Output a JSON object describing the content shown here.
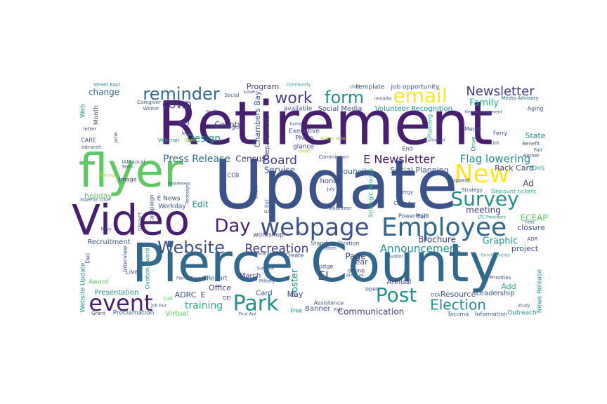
{
  "palette": {
    "dark_purple": "#481f70",
    "violet": "#443a83",
    "indigo": "#3b528b",
    "steel_blue": "#31688e",
    "blue": "#2c728e",
    "teal": "#21918c",
    "sea_green": "#28ae80",
    "green": "#5ec962",
    "lime": "#addc30",
    "yellow": "#fde725",
    "gold": "#d0e11c"
  },
  "words": [
    {
      "text": "Retirement",
      "c": "dark_purple"
    },
    {
      "text": "Update",
      "c": "indigo"
    },
    {
      "text": "Pierce County",
      "c": "steel_blue"
    },
    {
      "text": "flyer",
      "c": "green"
    },
    {
      "text": "Video",
      "c": "dark_purple"
    },
    {
      "text": "Employee",
      "c": "steel_blue"
    },
    {
      "text": "webpage",
      "c": "indigo"
    },
    {
      "text": "New",
      "c": "yellow"
    },
    {
      "text": "Survey",
      "c": "teal"
    },
    {
      "text": "email",
      "c": "yellow"
    },
    {
      "text": "form",
      "c": "teal"
    },
    {
      "text": "work",
      "c": "violet"
    },
    {
      "text": "reminder",
      "c": "steel_blue"
    },
    {
      "text": "Newsletter",
      "c": "violet"
    },
    {
      "text": "Family",
      "c": "sea_green"
    },
    {
      "text": "Day",
      "c": "dark_purple"
    },
    {
      "text": "Website",
      "c": "indigo"
    },
    {
      "text": "Park",
      "c": "teal"
    },
    {
      "text": "event",
      "c": "dark_purple"
    },
    {
      "text": "Post",
      "c": "teal"
    },
    {
      "text": "Election",
      "c": "teal"
    },
    {
      "text": "Recreation",
      "c": "violet"
    },
    {
      "text": "Announcement",
      "c": "teal"
    },
    {
      "text": "Board",
      "c": "violet"
    },
    {
      "text": "E Newsletter",
      "c": "dark_purple"
    },
    {
      "text": "Flag lowering",
      "c": "teal"
    },
    {
      "text": "Press Release",
      "c": "steel_blue"
    },
    {
      "text": "Census",
      "c": "violet"
    },
    {
      "text": "Design",
      "c": "teal"
    },
    {
      "text": "COVID",
      "c": "violet"
    },
    {
      "text": "change",
      "c": "steel_blue"
    },
    {
      "text": "Service",
      "c": "indigo"
    },
    {
      "text": "Council",
      "c": "steel_blue"
    },
    {
      "text": "Social Planning",
      "c": "indigo"
    },
    {
      "text": "Rack Card",
      "c": "violet"
    },
    {
      "text": "POHS",
      "c": "teal"
    },
    {
      "text": "Ad",
      "c": "violet"
    },
    {
      "text": "meeting",
      "c": "violet"
    },
    {
      "text": "ECEAP",
      "c": "green"
    },
    {
      "text": "closure",
      "c": "indigo"
    },
    {
      "text": "Graphic",
      "c": "teal"
    },
    {
      "text": "project",
      "c": "indigo"
    },
    {
      "text": "Brochure",
      "c": "violet"
    },
    {
      "text": "Page",
      "c": "violet"
    },
    {
      "text": "EI",
      "c": "indigo"
    },
    {
      "text": "Poster",
      "c": "teal"
    },
    {
      "text": "Year",
      "c": "indigo"
    },
    {
      "text": "Annual",
      "c": "violet"
    },
    {
      "text": "Resource",
      "c": "indigo"
    },
    {
      "text": "Leadership",
      "c": "indigo"
    },
    {
      "text": "News Release",
      "c": "teal"
    },
    {
      "text": "Add",
      "c": "sea_green"
    },
    {
      "text": "Communication",
      "c": "violet"
    },
    {
      "text": "Banner",
      "c": "indigo"
    },
    {
      "text": "training",
      "c": "sea_green"
    },
    {
      "text": "ADRC",
      "c": "indigo"
    },
    {
      "text": "E",
      "c": "violet"
    },
    {
      "text": "Office",
      "c": "violet"
    },
    {
      "text": "Card",
      "c": "indigo"
    },
    {
      "text": "May",
      "c": "violet"
    },
    {
      "text": "March",
      "c": "violet"
    },
    {
      "text": "Report",
      "c": "steel_blue"
    },
    {
      "text": "Presentation",
      "c": "teal"
    },
    {
      "text": "Proclamation",
      "c": "steel_blue"
    },
    {
      "text": "Virtual",
      "c": "green"
    },
    {
      "text": "Award",
      "c": "green"
    },
    {
      "text": "Live",
      "c": "violet"
    },
    {
      "text": "Ovation Award",
      "c": "teal"
    },
    {
      "text": "Interview",
      "c": "indigo"
    },
    {
      "text": "Recruitment",
      "c": "indigo"
    },
    {
      "text": "Dec",
      "c": "indigo"
    },
    {
      "text": "holiday",
      "c": "green"
    },
    {
      "text": "Edit",
      "c": "teal"
    },
    {
      "text": "Workday",
      "c": "indigo"
    },
    {
      "text": "E News",
      "c": "indigo"
    },
    {
      "text": "campaign",
      "c": "indigo"
    },
    {
      "text": "Image",
      "c": "violet"
    },
    {
      "text": "IAM Local",
      "c": "indigo"
    },
    {
      "text": "CARE",
      "c": "indigo"
    },
    {
      "text": "intranet",
      "c": "indigo"
    },
    {
      "text": "Veteran",
      "c": "teal"
    },
    {
      "text": "April",
      "c": "lime"
    },
    {
      "text": "logo",
      "c": "indigo"
    },
    {
      "text": "letter",
      "c": "indigo"
    },
    {
      "text": "Winter",
      "c": "indigo"
    },
    {
      "text": "Caregiver",
      "c": "indigo"
    },
    {
      "text": "Web",
      "c": "teal"
    },
    {
      "text": "Month",
      "c": "indigo"
    },
    {
      "text": "Street East",
      "c": "teal"
    },
    {
      "text": "Program",
      "c": "violet"
    },
    {
      "text": "County",
      "c": "violet"
    },
    {
      "text": "message",
      "c": "indigo"
    },
    {
      "text": "blog",
      "c": "indigo"
    },
    {
      "text": "Social",
      "c": "indigo"
    },
    {
      "text": "Love",
      "c": "indigo"
    },
    {
      "text": "Chambers Bay",
      "c": "indigo"
    },
    {
      "text": "Department",
      "c": "violet"
    },
    {
      "text": "available",
      "c": "indigo"
    },
    {
      "text": "Social Media",
      "c": "indigo"
    },
    {
      "text": "Volunteer Recognition",
      "c": "teal"
    },
    {
      "text": "template",
      "c": "indigo"
    },
    {
      "text": "job opportunity",
      "c": "indigo"
    },
    {
      "text": "Media Advisory",
      "c": "steel_blue"
    },
    {
      "text": "Aging",
      "c": "indigo"
    },
    {
      "text": "Executive",
      "c": "indigo"
    },
    {
      "text": "Photo",
      "c": "violet"
    },
    {
      "text": "glance",
      "c": "violet"
    },
    {
      "text": "Extra Hire",
      "c": "lime"
    },
    {
      "text": "End",
      "c": "indigo"
    },
    {
      "text": "Media",
      "c": "indigo"
    },
    {
      "text": "Ferry",
      "c": "indigo"
    },
    {
      "text": "State",
      "c": "teal"
    },
    {
      "text": "Benefit",
      "c": "indigo"
    },
    {
      "text": "Fair",
      "c": "indigo"
    },
    {
      "text": "Drive",
      "c": "teal"
    },
    {
      "text": "Planning",
      "c": "sea_green"
    },
    {
      "text": "Commission",
      "c": "indigo"
    },
    {
      "text": "Request",
      "c": "indigo"
    },
    {
      "text": "CCB",
      "c": "violet"
    },
    {
      "text": "Ride",
      "c": "indigo"
    },
    {
      "text": "E list",
      "c": "indigo"
    },
    {
      "text": "honor",
      "c": "violet"
    },
    {
      "text": "Strategic Alliance",
      "c": "sea_green"
    },
    {
      "text": "Strategy",
      "c": "indigo"
    },
    {
      "text": "Discount tickets",
      "c": "sea_green"
    },
    {
      "text": "Energy",
      "c": "indigo"
    },
    {
      "text": "Calendar",
      "c": "indigo"
    },
    {
      "text": "Fall",
      "c": "indigo"
    },
    {
      "text": "PowerPoint",
      "c": "indigo"
    },
    {
      "text": "workshop",
      "c": "violet"
    },
    {
      "text": "Standing Ovation",
      "c": "indigo"
    },
    {
      "text": "Volunteer",
      "c": "indigo"
    },
    {
      "text": "online",
      "c": "violet"
    },
    {
      "text": "Judge",
      "c": "indigo"
    },
    {
      "text": "Create",
      "c": "indigo"
    },
    {
      "text": "Assistance",
      "c": "indigo"
    },
    {
      "text": "Free",
      "c": "teal"
    },
    {
      "text": "Fab",
      "c": "indigo"
    },
    {
      "text": "open",
      "c": "indigo"
    },
    {
      "text": "Tacoma",
      "c": "indigo"
    },
    {
      "text": "Information",
      "c": "indigo"
    },
    {
      "text": "Outreach",
      "c": "teal"
    },
    {
      "text": "Priorities",
      "c": "indigo"
    },
    {
      "text": "ADR",
      "c": "indigo"
    },
    {
      "text": "winner",
      "c": "indigo"
    },
    {
      "text": "Grant",
      "c": "indigo"
    },
    {
      "text": "DEI",
      "c": "indigo"
    },
    {
      "text": "Call",
      "c": "green"
    },
    {
      "text": "Spring",
      "c": "lime"
    },
    {
      "text": "study",
      "c": "indigo"
    },
    {
      "text": "Job Fair",
      "c": "indigo"
    },
    {
      "text": "First Aid",
      "c": "indigo"
    },
    {
      "text": "Behavioral Health",
      "c": "indigo"
    },
    {
      "text": "Pierce Trips",
      "c": "indigo"
    },
    {
      "text": "Superior Court",
      "c": "indigo"
    },
    {
      "text": "Navy",
      "c": "indigo"
    },
    {
      "text": "Army vs",
      "c": "indigo"
    },
    {
      "text": "classes",
      "c": "indigo"
    },
    {
      "text": "LTC Providers",
      "c": "teal"
    },
    {
      "text": "Heavy equipment",
      "c": "indigo"
    },
    {
      "text": "Community",
      "c": "teal"
    },
    {
      "text": "child",
      "c": "indigo"
    },
    {
      "text": "remarks",
      "c": "indigo"
    },
    {
      "text": "Staff",
      "c": "indigo"
    },
    {
      "text": "Team",
      "c": "indigo"
    },
    {
      "text": "June",
      "c": "indigo"
    },
    {
      "text": "Awareness",
      "c": "indigo"
    },
    {
      "text": "Redesign",
      "c": "indigo"
    },
    {
      "text": "Summer",
      "c": "indigo"
    },
    {
      "text": "July",
      "c": "indigo"
    },
    {
      "text": "Auditor",
      "c": "indigo"
    },
    {
      "text": "Military",
      "c": "indigo"
    },
    {
      "text": "Website Update",
      "c": "teal"
    },
    {
      "text": "Auctioned",
      "c": "indigo"
    },
    {
      "text": "Discount",
      "c": "indigo"
    },
    {
      "text": "Fees",
      "c": "indigo"
    },
    {
      "text": "Job",
      "c": "indigo"
    },
    {
      "text": "Family events",
      "c": "sea_green"
    },
    {
      "text": "home",
      "c": "indigo"
    },
    {
      "text": "Week",
      "c": "lime"
    },
    {
      "text": "DEA",
      "c": "indigo"
    }
  ]
}
